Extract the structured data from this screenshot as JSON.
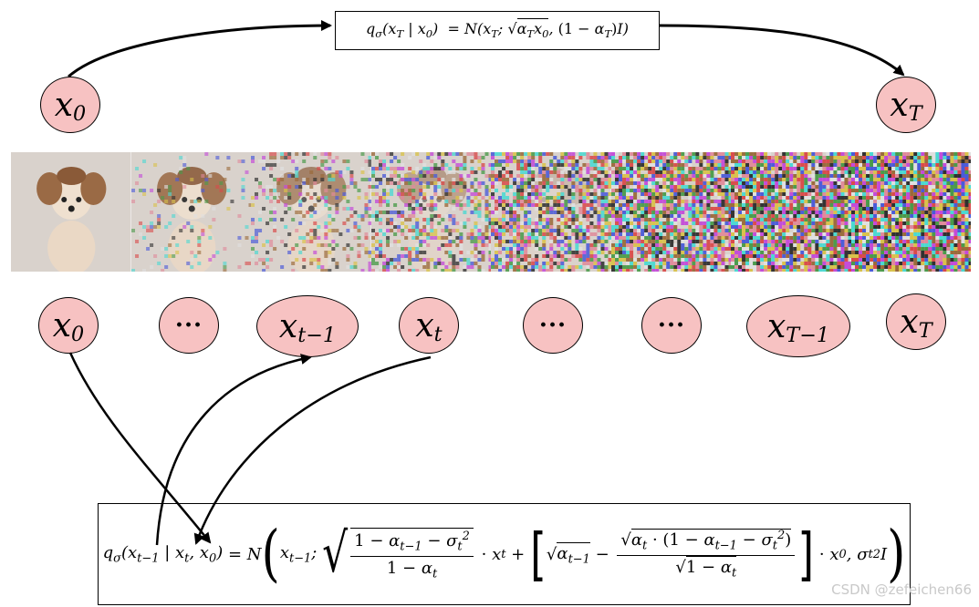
{
  "top_equation": {
    "lhs": "qσ(xT | x0)",
    "rhs": "= N(xT; √αT x0, (1 − αT)I)"
  },
  "top_nodes": {
    "start": {
      "main": "x",
      "sub": "0"
    },
    "end": {
      "main": "x",
      "sub": "T"
    }
  },
  "bottom_nodes": [
    {
      "main": "x",
      "sub": "0"
    },
    {
      "main": "···",
      "sub": ""
    },
    {
      "main": "x",
      "sub": "t−1"
    },
    {
      "main": "x",
      "sub": "t"
    },
    {
      "main": "···",
      "sub": ""
    },
    {
      "main": "···",
      "sub": ""
    },
    {
      "main": "x",
      "sub": "T−1"
    },
    {
      "main": "x",
      "sub": "T"
    }
  ],
  "image_strip": {
    "subject": "dog photo progressively noised",
    "frames": 8,
    "noise_levels": [
      0.0,
      0.12,
      0.3,
      0.5,
      0.72,
      0.88,
      0.95,
      1.0
    ]
  },
  "bottom_equation": {
    "text": "qσ(xt−1 | xt, x0) = N( xt−1; √((1 − αt−1 − σt²)/(1 − αt)) · xt + [ √αt−1 − √(αt · (1 − αt−1 − σt²)) / √(1 − αt) ] · x0, σt² I )"
  },
  "watermark": "CSDN @zefeichen66",
  "colors": {
    "node_fill": "#f7c2c2",
    "stroke": "#000000"
  }
}
